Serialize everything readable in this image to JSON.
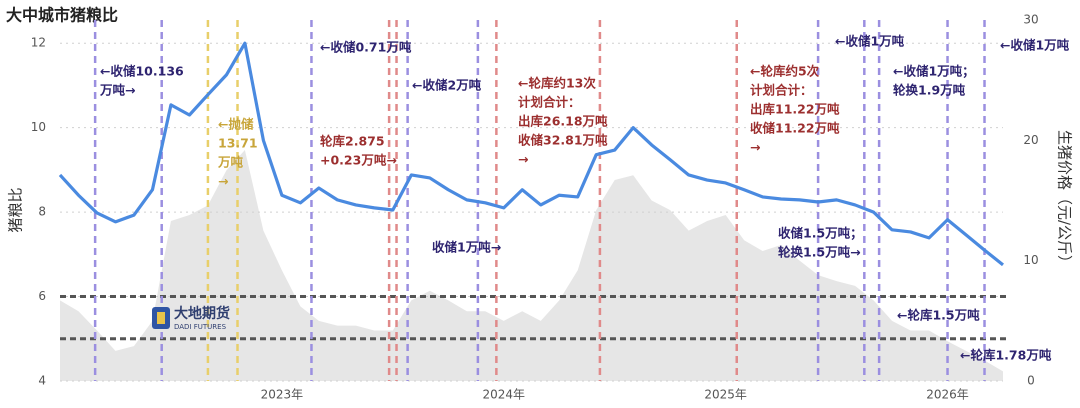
{
  "chart_data": {
    "type": "line",
    "title": "大中城市猪粮比",
    "y_label": "猪粮比",
    "y2_label": "生猪价格（元/公斤）",
    "categories": [
      null,
      null,
      null,
      null,
      null,
      null,
      null,
      null,
      null,
      null,
      null,
      null,
      "2023年",
      null,
      null,
      null,
      null,
      null,
      null,
      null,
      null,
      null,
      null,
      null,
      "2024年",
      null,
      null,
      null,
      null,
      null,
      null,
      null,
      null,
      null,
      null,
      null,
      "2025年",
      null,
      null,
      null,
      null,
      null,
      null,
      null,
      null,
      null,
      null,
      null,
      "2026年",
      null,
      null,
      null
    ],
    "series": [
      {
        "kind": "area",
        "axis": "y2",
        "color": "#e6e6e6",
        "values": [
          6.7,
          5.8,
          4.2,
          2.5,
          2.9,
          5.0,
          13.3,
          13.8,
          14.6,
          17.5,
          19.2,
          12.5,
          9.2,
          6.2,
          5.0,
          4.6,
          4.6,
          4.2,
          4.2,
          6.7,
          7.5,
          6.7,
          5.8,
          5.8,
          5.0,
          5.8,
          5.0,
          6.7,
          9.2,
          14.2,
          16.7,
          17.1,
          15.0,
          14.2,
          12.5,
          13.3,
          13.8,
          11.7,
          10.8,
          11.3,
          10.0,
          8.8,
          8.3,
          7.9,
          6.7,
          5.0,
          4.2,
          4.2,
          3.3,
          2.5,
          1.7,
          0.8
        ]
      },
      {
        "kind": "line",
        "axis": "y",
        "color": "#4a8ae0",
        "values": [
          8.88,
          8.4,
          7.98,
          7.77,
          7.93,
          8.53,
          10.54,
          10.3,
          10.78,
          11.25,
          12.0,
          9.7,
          8.4,
          8.22,
          8.57,
          8.29,
          8.17,
          8.1,
          8.05,
          8.88,
          8.81,
          8.53,
          8.29,
          8.22,
          8.1,
          8.53,
          8.17,
          8.4,
          8.36,
          9.36,
          9.47,
          10.0,
          9.59,
          9.24,
          8.88,
          8.76,
          8.69,
          8.53,
          8.36,
          8.31,
          8.29,
          8.24,
          8.29,
          8.17,
          8.0,
          7.58,
          7.53,
          7.39,
          7.82,
          7.46,
          7.1,
          6.75
        ]
      }
    ],
    "ylim": [
      4,
      12.55
    ],
    "yticks": [
      4,
      6,
      8,
      10,
      12
    ],
    "y2lim": [
      0,
      30
    ],
    "y2ticks": [
      0,
      10,
      20,
      30
    ],
    "grid": true,
    "hlines": [
      6,
      5
    ],
    "vlines": [
      {
        "x": 1.9,
        "color": "#9b8fe0"
      },
      {
        "x": 5.5,
        "color": "#9b8fe0"
      },
      {
        "x": 8.0,
        "color": "#e8cf6a"
      },
      {
        "x": 9.6,
        "color": "#e8cf6a"
      },
      {
        "x": 13.6,
        "color": "#9b8fe0"
      },
      {
        "x": 17.8,
        "color": "#e08a8a"
      },
      {
        "x": 18.2,
        "color": "#e08a8a"
      },
      {
        "x": 18.8,
        "color": "#9b8fe0"
      },
      {
        "x": 22.6,
        "color": "#9b8fe0"
      },
      {
        "x": 23.6,
        "color": "#e08a8a"
      },
      {
        "x": 29.2,
        "color": "#e08a8a"
      },
      {
        "x": 36.6,
        "color": "#e08a8a"
      },
      {
        "x": 41.0,
        "color": "#9b8fe0"
      },
      {
        "x": 43.5,
        "color": "#9b8fe0"
      },
      {
        "x": 44.3,
        "color": "#9b8fe0"
      },
      {
        "x": 48.0,
        "color": "#9b8fe0"
      },
      {
        "x": 50.0,
        "color": "#9b8fe0"
      }
    ],
    "annotations": [
      {
        "color": "#2e2470",
        "lines": [
          "←收储10.136",
          "万吨→"
        ]
      },
      {
        "color": "#c8a53a",
        "lines": [
          "←抛储",
          "13.71",
          "万吨",
          "→"
        ]
      },
      {
        "color": "#2e2470",
        "lines": [
          "←收储0.71万吨"
        ]
      },
      {
        "color": "#9c2f2f",
        "lines": [
          "轮库2.875",
          "+0.23万吨→"
        ]
      },
      {
        "color": "#2e2470",
        "lines": [
          "←收储2万吨"
        ]
      },
      {
        "color": "#2e2470",
        "lines": [
          "收储1万吨→"
        ]
      },
      {
        "color": "#9c2f2f",
        "lines": [
          "←轮库约13次",
          "计划合计：",
          "出库26.18万吨",
          "收储32.81万吨",
          "→"
        ]
      },
      {
        "color": "#9c2f2f",
        "lines": [
          "←轮库约5次",
          "计划合计：",
          "出库11.22万吨",
          "收储11.22万吨",
          "→"
        ]
      },
      {
        "color": "#2e2470",
        "lines": [
          "←收储1万吨"
        ]
      },
      {
        "color": "#2e2470",
        "lines": [
          "←收储1万吨；",
          "轮换1.9万吨"
        ]
      },
      {
        "color": "#2e2470",
        "lines": [
          "←收储1万吨"
        ]
      },
      {
        "color": "#2e2470",
        "lines": [
          "收储1.5万吨；",
          "轮换1.5万吨→"
        ]
      },
      {
        "color": "#2e2470",
        "lines": [
          "←轮库1.5万吨"
        ]
      },
      {
        "color": "#2e2470",
        "lines": [
          "←轮库1.78万吨"
        ]
      }
    ],
    "watermark": {
      "name": "大地期货",
      "tagline": "DADI FUTURES"
    }
  }
}
